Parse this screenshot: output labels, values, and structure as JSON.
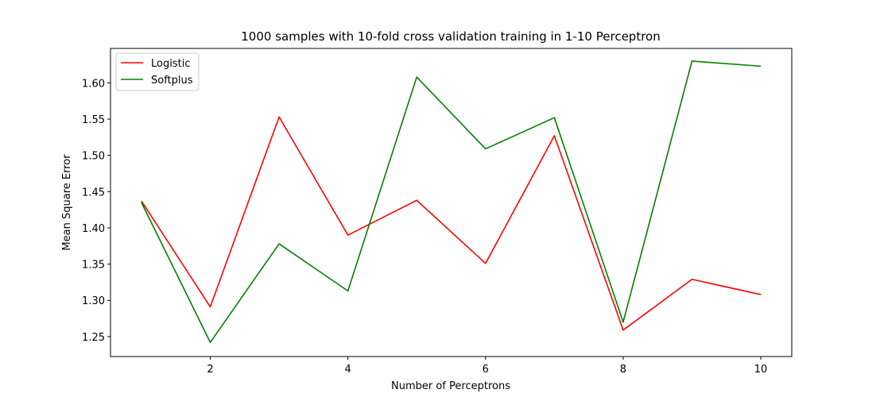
{
  "chart_data": {
    "type": "line",
    "title": "1000 samples with 10-fold cross validation training in 1-10 Perceptron",
    "xlabel": "Number of Perceptrons",
    "ylabel": "Mean Square Error",
    "x": [
      1,
      2,
      3,
      4,
      5,
      6,
      7,
      8,
      9,
      10
    ],
    "xlim": [
      0.55,
      10.45
    ],
    "ylim": [
      1.2225,
      1.6475
    ],
    "xticks": [
      2,
      4,
      6,
      8,
      10
    ],
    "yticks": [
      1.25,
      1.3,
      1.35,
      1.4,
      1.45,
      1.5,
      1.55,
      1.6
    ],
    "ytick_labels": [
      "1.25",
      "1.30",
      "1.35",
      "1.40",
      "1.45",
      "1.50",
      "1.55",
      "1.60"
    ],
    "grid": false,
    "legend_position": "top-left",
    "series": [
      {
        "name": "Logistic",
        "color": "#ff0000",
        "values": [
          1.437,
          1.291,
          1.553,
          1.39,
          1.438,
          1.351,
          1.527,
          1.259,
          1.329,
          1.308
        ]
      },
      {
        "name": "Softplus",
        "color": "#008000",
        "values": [
          1.435,
          1.242,
          1.378,
          1.313,
          1.608,
          1.509,
          1.552,
          1.27,
          1.63,
          1.623
        ]
      }
    ]
  }
}
